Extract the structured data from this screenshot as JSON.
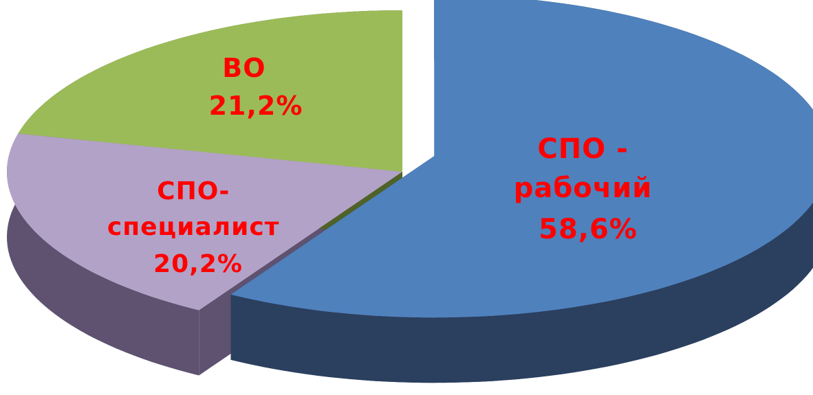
{
  "chart_data": {
    "type": "pie",
    "style": "3d-exploded",
    "title": "",
    "slices": [
      {
        "label_lines": [
          "СПО -",
          "рабочий"
        ],
        "value": 58.6,
        "value_label": "58,6%",
        "color": "#4f81bd",
        "side_color": "#2b3f5f",
        "exploded": true
      },
      {
        "label_lines": [
          "СПО-",
          "специалист"
        ],
        "value": 20.2,
        "value_label": "20,2%",
        "color": "#b3a2c7",
        "side_color": "#5e5270",
        "exploded": false
      },
      {
        "label_lines": [
          "ВО"
        ],
        "value": 21.2,
        "value_label": "21,2%",
        "color": "#9bbb59",
        "side_color": "#4f6228",
        "exploded": false
      }
    ],
    "label_color": "#ff0000",
    "legend": "none"
  }
}
